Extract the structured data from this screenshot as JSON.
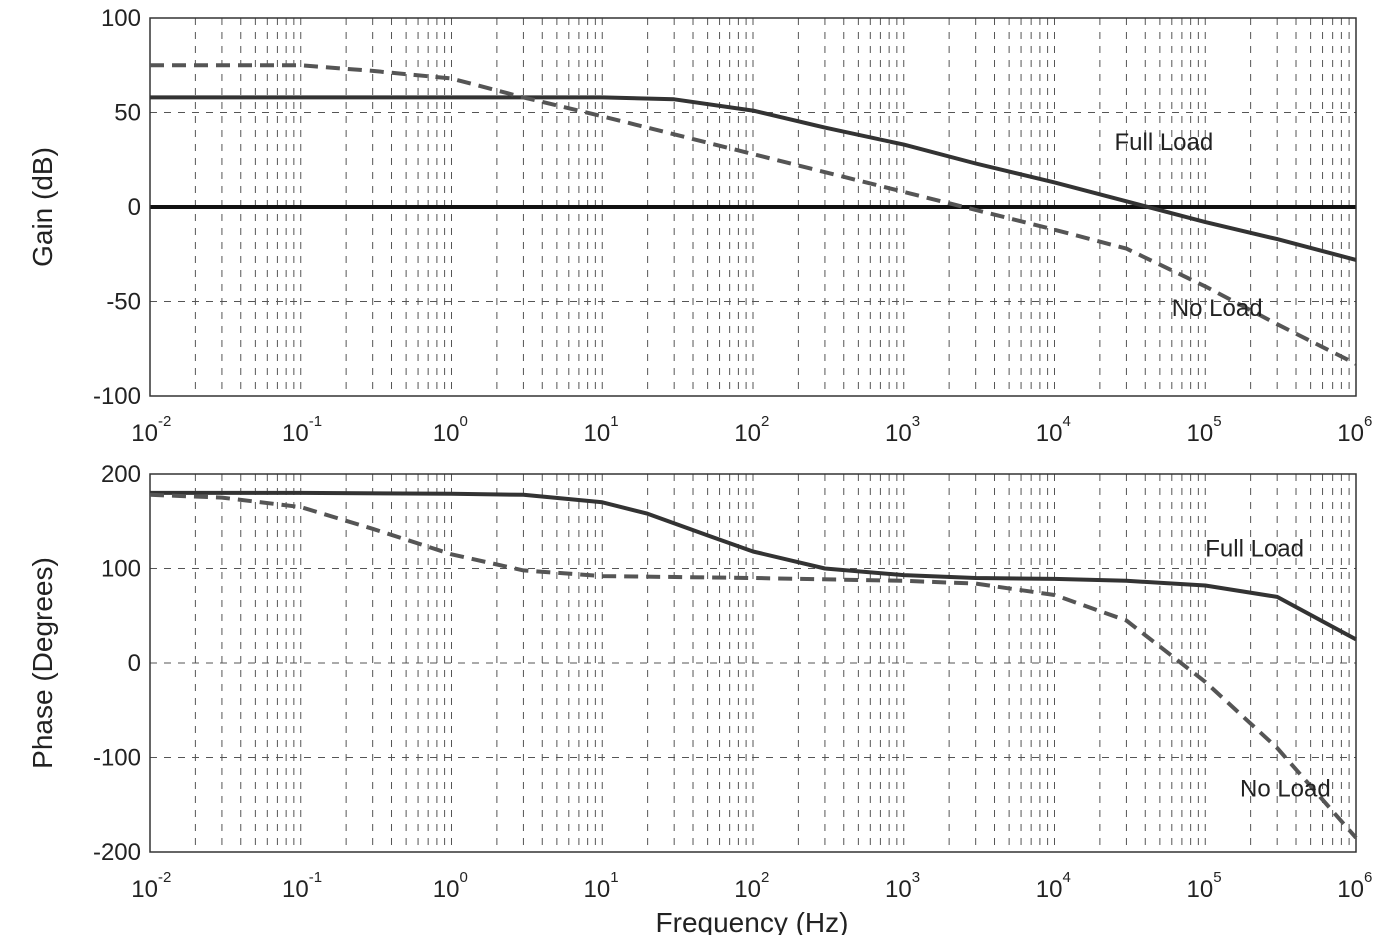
{
  "chart_data": [
    {
      "type": "line",
      "xscale": "log",
      "xlim": [
        0.01,
        1000000
      ],
      "ylim": [
        -100,
        100
      ],
      "ylabel": "Gain (dB)",
      "xlabel": "",
      "grid": true,
      "xticks": [
        {
          "base": "10",
          "exp": "-2"
        },
        {
          "base": "10",
          "exp": "-1"
        },
        {
          "base": "10",
          "exp": "0"
        },
        {
          "base": "10",
          "exp": "1"
        },
        {
          "base": "10",
          "exp": "2"
        },
        {
          "base": "10",
          "exp": "3"
        },
        {
          "base": "10",
          "exp": "4"
        },
        {
          "base": "10",
          "exp": "5"
        },
        {
          "base": "10",
          "exp": "6"
        }
      ],
      "yticks": [
        "100",
        "50",
        "0",
        "-50",
        "-100"
      ],
      "reference_line": 0,
      "annotations": [
        {
          "text": "Full Load",
          "x": 25000,
          "y": 35
        },
        {
          "text": "No Load",
          "x": 60000,
          "y": -53
        }
      ],
      "series": [
        {
          "name": "Full Load",
          "style": "solid",
          "color": "#333333",
          "x": [
            0.01,
            0.1,
            1,
            10,
            30,
            100,
            300,
            1000,
            3000,
            10000,
            30000,
            100000,
            300000,
            1000000
          ],
          "y": [
            58,
            58,
            58,
            58,
            57,
            51,
            42,
            33,
            23,
            13,
            3,
            -8,
            -17,
            -28
          ]
        },
        {
          "name": "No Load",
          "style": "dashed",
          "color": "#555555",
          "x": [
            0.01,
            0.1,
            0.3,
            1,
            3,
            10,
            100,
            1000,
            10000,
            30000,
            100000,
            300000,
            1000000
          ],
          "y": [
            75,
            75,
            72,
            68,
            58,
            48,
            28,
            8,
            -12,
            -22,
            -42,
            -62,
            -83
          ]
        }
      ]
    },
    {
      "type": "line",
      "xscale": "log",
      "xlim": [
        0.01,
        1000000
      ],
      "ylim": [
        -200,
        200
      ],
      "ylabel": "Phase (Degrees)",
      "xlabel": "Frequency (Hz)",
      "grid": true,
      "xticks": [
        {
          "base": "10",
          "exp": "-2"
        },
        {
          "base": "10",
          "exp": "-1"
        },
        {
          "base": "10",
          "exp": "0"
        },
        {
          "base": "10",
          "exp": "1"
        },
        {
          "base": "10",
          "exp": "2"
        },
        {
          "base": "10",
          "exp": "3"
        },
        {
          "base": "10",
          "exp": "4"
        },
        {
          "base": "10",
          "exp": "5"
        },
        {
          "base": "10",
          "exp": "6"
        }
      ],
      "yticks": [
        "200",
        "100",
        "0",
        "-100",
        "-200"
      ],
      "annotations": [
        {
          "text": "Full Load",
          "x": 100000,
          "y": 122
        },
        {
          "text": "No Load",
          "x": 170000,
          "y": -132
        }
      ],
      "series": [
        {
          "name": "Full Load",
          "style": "solid",
          "color": "#333333",
          "x": [
            0.01,
            0.1,
            1,
            3,
            10,
            20,
            50,
            100,
            300,
            1000,
            3000,
            10000,
            30000,
            100000,
            300000,
            1000000
          ],
          "y": [
            180,
            180,
            179,
            178,
            170,
            158,
            135,
            118,
            100,
            93,
            90,
            89,
            87,
            82,
            70,
            25
          ]
        },
        {
          "name": "No Load",
          "style": "dashed",
          "color": "#555555",
          "x": [
            0.01,
            0.03,
            0.1,
            0.3,
            1,
            3,
            10,
            100,
            1000,
            3000,
            10000,
            30000,
            100000,
            300000,
            1000000
          ],
          "y": [
            178,
            175,
            165,
            142,
            115,
            98,
            92,
            90,
            87,
            84,
            72,
            45,
            -20,
            -90,
            -185
          ]
        }
      ]
    }
  ]
}
